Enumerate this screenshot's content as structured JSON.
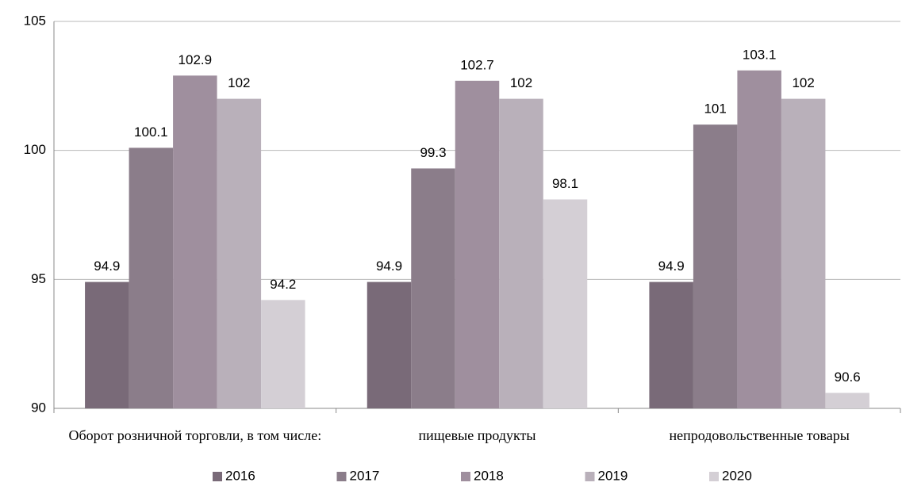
{
  "chart_data": {
    "type": "bar",
    "categories": [
      "Оборот розничной торговли, в том числе:",
      "пищевые продукты",
      "непродовольственные товары"
    ],
    "series": [
      {
        "name": "2016",
        "color": "#796a78",
        "values": [
          94.9,
          94.9,
          94.9
        ]
      },
      {
        "name": "2017",
        "color": "#8b7d8a",
        "values": [
          100.1,
          99.3,
          101
        ]
      },
      {
        "name": "2018",
        "color": "#9f8f9e",
        "values": [
          102.9,
          102.7,
          103.1
        ]
      },
      {
        "name": "2019",
        "color": "#b9b0ba",
        "values": [
          102,
          102,
          102
        ]
      },
      {
        "name": "2020",
        "color": "#d4cfd5",
        "values": [
          94.2,
          98.1,
          90.6
        ]
      }
    ],
    "ylim": [
      90,
      105
    ],
    "yticks": [
      90,
      95,
      100,
      105
    ],
    "grid": true,
    "legend": "bottom"
  }
}
